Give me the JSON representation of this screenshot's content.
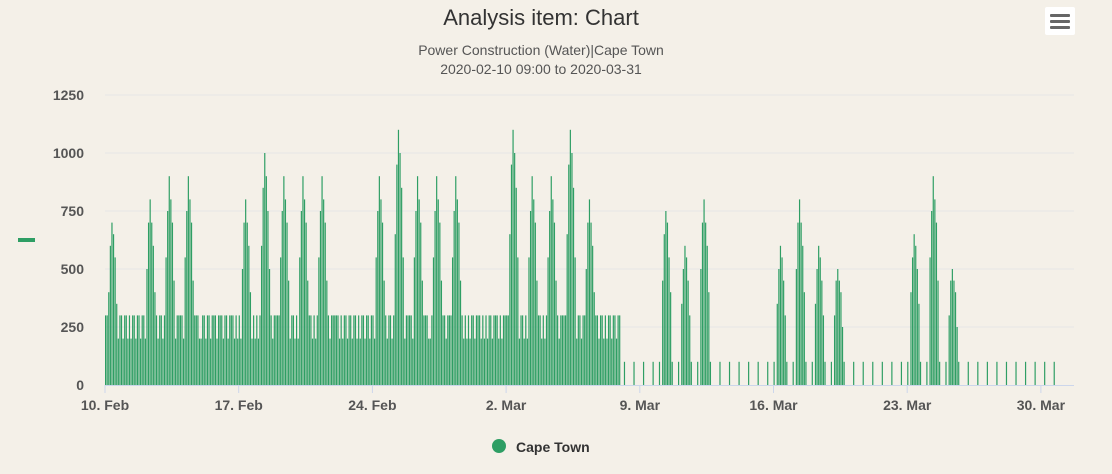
{
  "chart": {
    "title": "Analysis item: Chart",
    "subtitle_line1": "Power Construction (Water)|Cape Town",
    "subtitle_line2": "2020-02-10 09:00 to 2020-03-31",
    "ylabel_marker": "—",
    "legend_label": "Cape Town",
    "menu_icon": "hamburger-menu-icon"
  },
  "colors": {
    "background": "#f4f0e8",
    "series": "#2e9e64",
    "grid": "#e6e6e6",
    "axis": "#ccd6eb"
  },
  "chart_data": {
    "type": "bar",
    "title": "Analysis item: Chart",
    "subtitle": "Power Construction (Water)|Cape Town — 2020-02-10 09:00 to 2020-03-31",
    "xlabel": "",
    "ylabel": "",
    "ylim": [
      0,
      1250
    ],
    "yticks": [
      0,
      250,
      500,
      750,
      1000,
      1250
    ],
    "xlim": [
      "2020-02-10",
      "2020-03-31"
    ],
    "xticks": [
      "10. Feb",
      "17. Feb",
      "24. Feb",
      "2. Mar",
      "9. Mar",
      "16. Mar",
      "23. Mar",
      "30. Mar"
    ],
    "grid": true,
    "legend": "bottom-center",
    "series": [
      {
        "name": "Cape Town",
        "x": [
          "2020-02-10",
          "2020-02-11",
          "2020-02-12",
          "2020-02-13",
          "2020-02-14",
          "2020-02-15",
          "2020-02-16",
          "2020-02-17",
          "2020-02-18",
          "2020-02-19",
          "2020-02-20",
          "2020-02-21",
          "2020-02-22",
          "2020-02-23",
          "2020-02-24",
          "2020-02-25",
          "2020-02-26",
          "2020-02-27",
          "2020-02-28",
          "2020-02-29",
          "2020-03-01",
          "2020-03-02",
          "2020-03-03",
          "2020-03-04",
          "2020-03-05",
          "2020-03-06",
          "2020-03-07",
          "2020-03-08",
          "2020-03-09",
          "2020-03-10",
          "2020-03-11",
          "2020-03-12",
          "2020-03-13",
          "2020-03-14",
          "2020-03-15",
          "2020-03-16",
          "2020-03-17",
          "2020-03-18",
          "2020-03-19",
          "2020-03-20",
          "2020-03-21",
          "2020-03-22",
          "2020-03-23",
          "2020-03-24",
          "2020-03-25",
          "2020-03-26",
          "2020-03-27",
          "2020-03-28",
          "2020-03-29",
          "2020-03-30"
        ],
        "daily_peak": [
          700,
          300,
          800,
          900,
          900,
          300,
          300,
          800,
          1000,
          900,
          900,
          900,
          300,
          300,
          900,
          1100,
          900,
          900,
          900,
          300,
          300,
          1100,
          900,
          900,
          1100,
          800,
          300,
          100,
          100,
          750,
          600,
          800,
          100,
          100,
          100,
          600,
          800,
          600,
          500,
          100,
          100,
          100,
          650,
          900,
          500,
          100,
          100,
          100,
          100,
          100
        ]
      }
    ]
  }
}
